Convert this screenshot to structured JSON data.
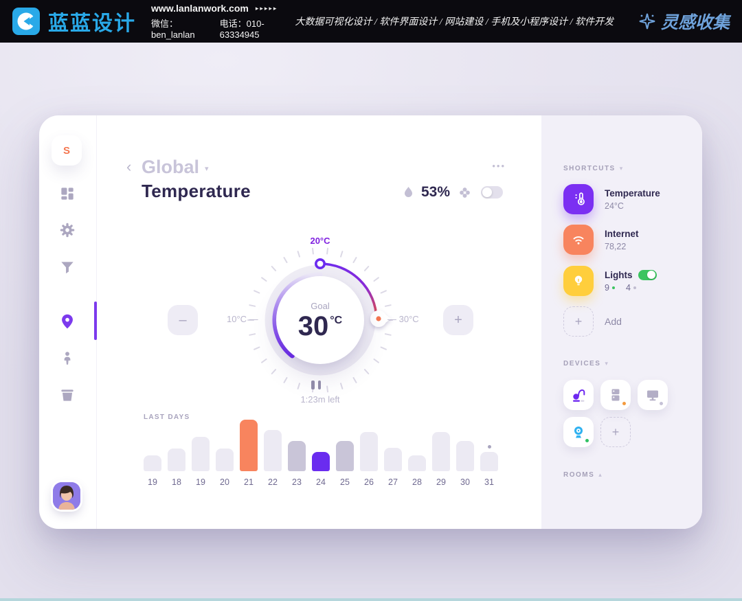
{
  "banner": {
    "brand": "蓝蓝设计",
    "website": "www.lanlanwork.com",
    "website_arrows": "▸▸▸▸▸",
    "wechat": "微信：ben_lanlan",
    "phone": "电话：010-63334945",
    "services": "大数据可视化设计 / 软件界面设计 / 网站建设 / 手机及小程序设计 / 软件开发",
    "collection": "灵感收集"
  },
  "sidebar": {
    "logo_letter": "S"
  },
  "header": {
    "back": "‹",
    "category": "Global",
    "caret": "▾",
    "title": "Temperature",
    "humidity": "53%",
    "more": "•••"
  },
  "dial": {
    "top_label": "20°C",
    "left_label": "10°C —",
    "right_label": "— 30°C",
    "goal_label": "Goal",
    "goal_value": "30",
    "goal_unit": "°C",
    "time_left": "1:23m left",
    "minus": "–",
    "plus": "+"
  },
  "chart": {
    "type": "bar",
    "title": "LAST DAYS",
    "categories": [
      "19",
      "18",
      "19",
      "20",
      "21",
      "22",
      "23",
      "24",
      "25",
      "26",
      "27",
      "28",
      "29",
      "30",
      "31"
    ],
    "values": [
      23,
      33,
      50,
      33,
      75,
      60,
      44,
      28,
      44,
      57,
      34,
      23,
      57,
      44,
      28
    ],
    "styles": [
      "light",
      "light",
      "light",
      "light",
      "orange",
      "light",
      "dark",
      "purple",
      "dark",
      "light",
      "light",
      "light",
      "light",
      "light",
      "light"
    ],
    "dot_index": 14,
    "colors": {
      "light": "#ECEAF3",
      "dark": "#C9C5D8",
      "orange": "#F8845E",
      "purple": "#6A2CEF"
    }
  },
  "shortcuts": {
    "header": "SHORTCUTS",
    "caret": "▾",
    "items": [
      {
        "label": "Temperature",
        "value": "24°C"
      },
      {
        "label": "Internet",
        "value": "78,22"
      },
      {
        "label": "Lights",
        "on_count": "9",
        "off_count": "4"
      }
    ],
    "add_plus": "+",
    "add_label": "Add"
  },
  "devices": {
    "header": "DEVICES",
    "caret": "▾",
    "add_plus": "+",
    "icons": [
      "vacuum-icon",
      "fridge-icon",
      "monitor-icon",
      "camera-icon"
    ]
  },
  "rooms": {
    "header": "ROOMS",
    "caret": "▴"
  },
  "colors": {
    "accent_purple": "#6D28F0",
    "accent_orange": "#F8845E",
    "accent_yellow": "#FFCE3C",
    "accent_green": "#3BC45F",
    "brand_blue": "#29A9E8",
    "collect_blue": "#6FA3DC"
  }
}
